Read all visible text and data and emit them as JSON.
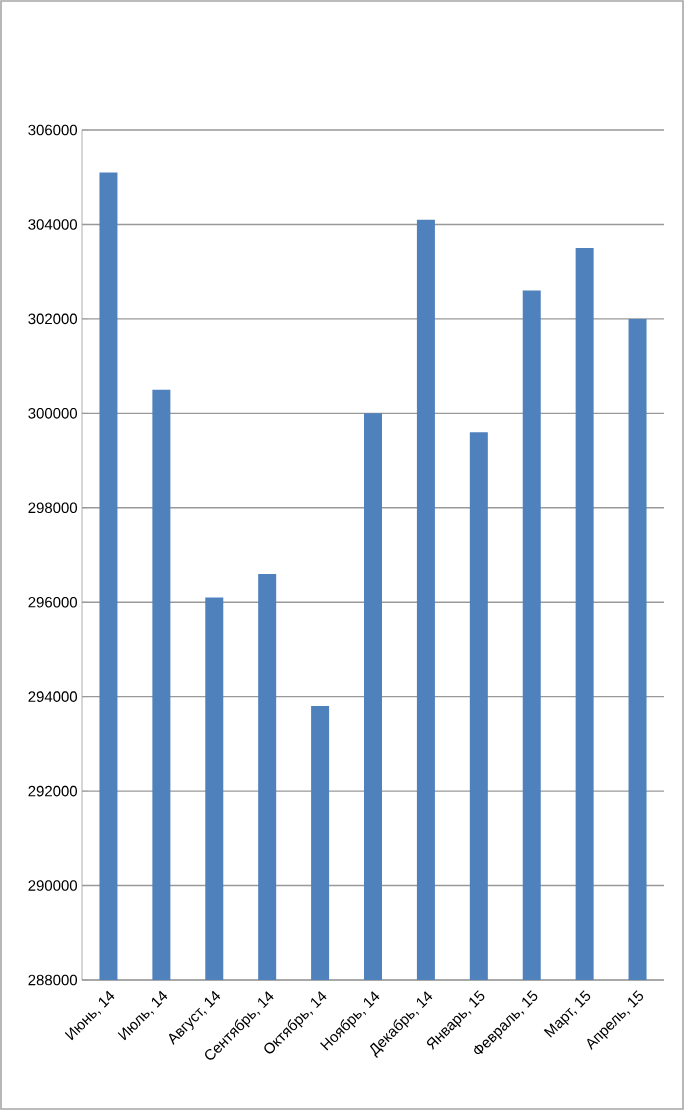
{
  "chart_data": {
    "type": "bar",
    "categories": [
      "Июнь, 14",
      "Июль, 14",
      "Август, 14",
      "Сентябрь, 14",
      "Октябрь, 14",
      "Ноябрь, 14",
      "Декабрь, 14",
      "Январь, 15",
      "Февраль, 15",
      "Март, 15",
      "Апрель, 15"
    ],
    "values": [
      305100,
      300500,
      296100,
      296600,
      293800,
      300000,
      304100,
      299600,
      302600,
      303500,
      302000
    ],
    "color": "#4f81bd",
    "ylim": [
      288000,
      306000
    ],
    "yticks": [
      288000,
      290000,
      292000,
      294000,
      296000,
      298000,
      300000,
      302000,
      304000,
      306000
    ],
    "grid": "y"
  }
}
